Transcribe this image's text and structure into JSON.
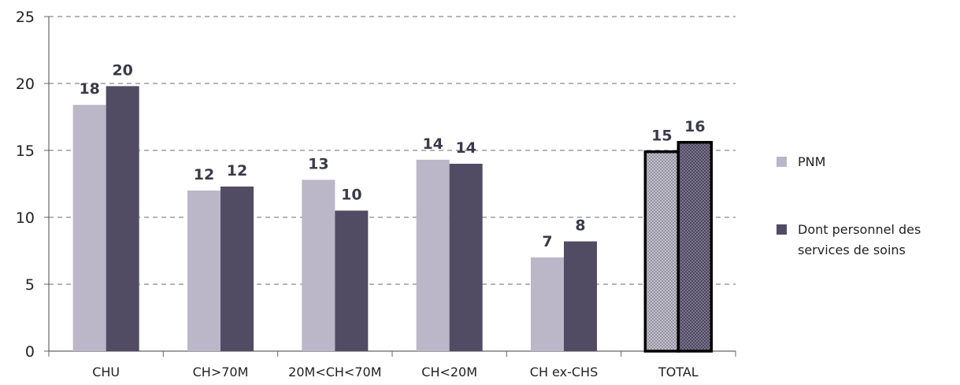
{
  "chart_data": {
    "type": "bar",
    "categories": [
      "CHU",
      "CH>70M",
      "20M<CH<70M",
      "CH<20M",
      "CH ex-CHS",
      "TOTAL"
    ],
    "series": [
      {
        "name": "PNM",
        "values": [
          18.4,
          12.0,
          12.8,
          14.3,
          7.0,
          14.9
        ],
        "labels": [
          "18",
          "12",
          "13",
          "14",
          "7",
          "15"
        ],
        "color": "#bbb6c8"
      },
      {
        "name": "Dont personnel des services de soins",
        "values": [
          19.8,
          12.3,
          10.5,
          14.0,
          8.2,
          15.6
        ],
        "labels": [
          "20",
          "12",
          "10",
          "14",
          "8",
          "16"
        ],
        "color": "#514c63"
      }
    ],
    "highlight_category": "TOTAL",
    "yticks": [
      "0",
      "5",
      "10",
      "15",
      "20",
      "25"
    ],
    "ylim": [
      0,
      25
    ],
    "grid": true,
    "legend_position": "right"
  }
}
